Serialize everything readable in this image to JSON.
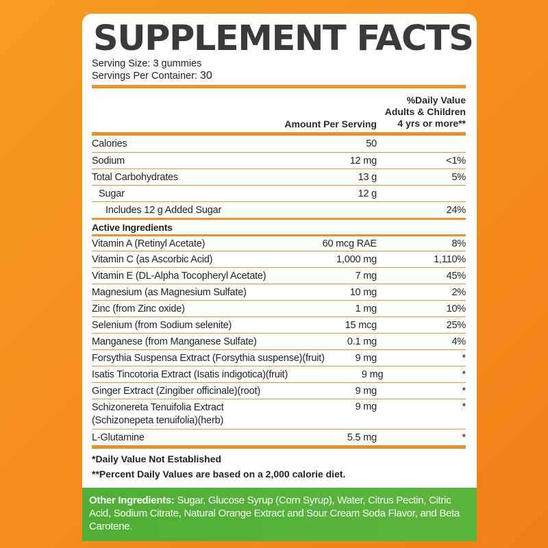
{
  "title": "SUPPLEMENT FACTS",
  "serving_size": "Serving Size: 3 gummies",
  "servings_label": "Servings Per Container:",
  "servings_value": "30",
  "header": {
    "amount": "Amount Per Serving",
    "dv_line1": "%Daily Value",
    "dv_line2": "Adults & Children",
    "dv_line3": "4 yrs or more**"
  },
  "nutrition": [
    {
      "name": "Calories",
      "amount": "50",
      "dv": ""
    },
    {
      "name": "Sodium",
      "amount": "12 mg",
      "dv": "<1%"
    },
    {
      "name": "Total Carbohydrates",
      "amount": "13 g",
      "dv": "5%"
    },
    {
      "name": "Sugar",
      "amount": "12 g",
      "dv": ""
    },
    {
      "name": "Includes 12 g Added Sugar",
      "amount": "",
      "dv": "24%"
    }
  ],
  "active_label": "Active Ingredients",
  "active": [
    {
      "name": "Vitamin A (Retinyl Acetate)",
      "amount": "60 mcg RAE",
      "dv": "8%"
    },
    {
      "name": "Vitamin C (as Ascorbic Acid)",
      "amount": "1,000 mg",
      "dv": "1,110%"
    },
    {
      "name": "Vitamin E (DL-Alpha Tocopheryl Acetate)",
      "amount": "7 mg",
      "dv": "45%"
    },
    {
      "name": "Magnesium (as Magnesium Sulfate)",
      "amount": "10 mg",
      "dv": "2%"
    },
    {
      "name": "Zinc (from Zinc oxide)",
      "amount": "1 mg",
      "dv": "10%"
    },
    {
      "name": "Selenium (from Sodium selenite)",
      "amount": "15 mcg",
      "dv": "25%"
    },
    {
      "name": "Manganese (from Manganese Sulfate)",
      "amount": "0.1 mg",
      "dv": "4%"
    },
    {
      "name": "Forsythia Suspensa Extract (Forsythia suspense)(fruit)",
      "amount": "9 mg",
      "dv": "*"
    },
    {
      "name": "Isatis Tincotoria Extract (Isatis indigotica)(fruit)",
      "amount": "9 mg",
      "dv": "*"
    },
    {
      "name": "Ginger Extract (Zingiber officinale)(root)",
      "amount": "9 mg",
      "dv": "*"
    },
    {
      "name": "Schizonereta Tenuifolia Extract",
      "name2": "(Schizonepeta tenuifolia)(herb)",
      "amount": "9 mg",
      "dv": "*"
    },
    {
      "name": "L-Glutamine",
      "amount": "5.5 mg",
      "dv": "*"
    }
  ],
  "footnote1": "*Daily Value Not Established",
  "footnote2": "**Percent Daily Values are based on a 2,000 calorie diet.",
  "other_label": "Other Ingredients:",
  "other_text": " Sugar, Glucose Syrup (Corn Syrup), Water, Citrus Pectin, Citric Acid, Sodium Citrate, Natural Orange Extract and Sour Cream Soda Flavor, and Beta Carotene.",
  "colors": {
    "accent": "#f0902a",
    "background": "#f79a22",
    "green": "#4fae36"
  }
}
